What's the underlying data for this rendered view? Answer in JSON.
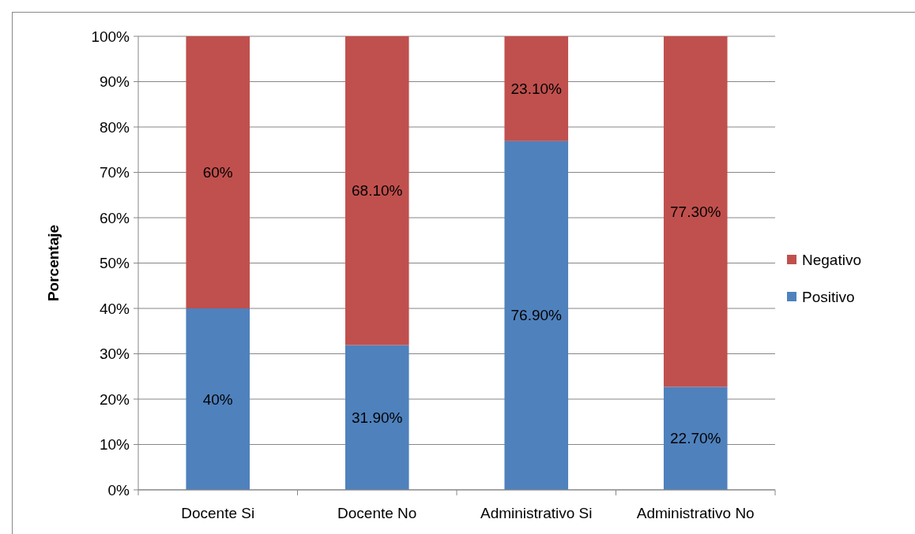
{
  "chart_data": {
    "type": "bar",
    "stacked": true,
    "ylabel": "Porcentaje",
    "categories": [
      "Docente Si",
      "Docente No",
      "Administrativo Si",
      "Administrativo No"
    ],
    "series": [
      {
        "name": "Positivo",
        "color": "#4f81bd",
        "values": [
          40,
          31.9,
          76.9,
          22.7
        ],
        "value_labels": [
          "40%",
          "31.90%",
          "76.90%",
          "22.70%"
        ]
      },
      {
        "name": "Negativo",
        "color": "#c0504d",
        "values": [
          60,
          68.1,
          23.1,
          77.3
        ],
        "value_labels": [
          "60%",
          "68.10%",
          "23.10%",
          "77.30%"
        ]
      }
    ],
    "ylim": [
      0,
      100
    ],
    "yticks": [
      {
        "value": 0,
        "label": "0%"
      },
      {
        "value": 10,
        "label": "10%"
      },
      {
        "value": 20,
        "label": "20%"
      },
      {
        "value": 30,
        "label": "30%"
      },
      {
        "value": 40,
        "label": "40%"
      },
      {
        "value": 50,
        "label": "50%"
      },
      {
        "value": 60,
        "label": "60%"
      },
      {
        "value": 70,
        "label": "70%"
      },
      {
        "value": 80,
        "label": "80%"
      },
      {
        "value": 90,
        "label": "90%"
      },
      {
        "value": 100,
        "label": "100%"
      }
    ],
    "grid": "y",
    "legend": "right"
  }
}
